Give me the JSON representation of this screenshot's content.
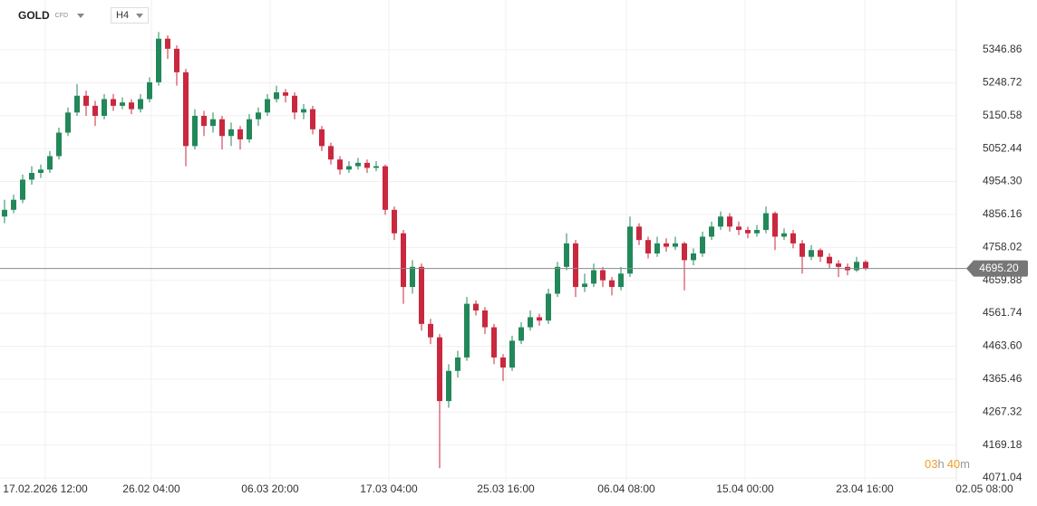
{
  "header": {
    "symbol": "GOLD",
    "instrument": "CFD",
    "timeframe": "H4"
  },
  "countdown": {
    "hours": "03",
    "hours_unit": "h",
    "minutes": "40",
    "minutes_unit": "m"
  },
  "chart_data": {
    "type": "candlestick",
    "up_color": "#22885a",
    "down_color": "#c9283e",
    "grid": true,
    "last_price": {
      "value": 4695.2,
      "label": "4695.20"
    },
    "ylim": [
      4060.2,
      5495.3
    ],
    "yticks": [
      5346.86,
      5248.72,
      5150.58,
      5052.44,
      {
        "value": 4954.3,
        "label": "4954.30"
      },
      4856.16,
      4758.02,
      4659.88,
      4561.74,
      {
        "value": 4463.6,
        "label": "4463.60"
      },
      4365.46,
      4267.32,
      4169.18,
      4071.04
    ],
    "xlim": [
      -0.5,
      113.5
    ],
    "xticks": [
      {
        "value": 4.5,
        "label": "17.02.2026 12:00"
      },
      {
        "value": 16.2,
        "label": "26.02 04:00"
      },
      {
        "value": 29.3,
        "label": "06.03 20:00"
      },
      {
        "value": 42.4,
        "label": "17.03 04:00"
      },
      {
        "value": 55.3,
        "label": "25.03 16:00"
      },
      {
        "value": 68.6,
        "label": "06.04 08:00"
      },
      {
        "value": 81.7,
        "label": "15.04 00:00"
      },
      {
        "value": 94.9,
        "label": "23.04 16:00"
      },
      {
        "value": 108.1,
        "label": "02.05 08:00"
      }
    ],
    "ohlc": [
      [
        4850,
        4900,
        4830,
        4870
      ],
      [
        4870,
        4915,
        4860,
        4900
      ],
      [
        4900,
        4975,
        4890,
        4960
      ],
      [
        4960,
        5000,
        4945,
        4980
      ],
      [
        4980,
        5005,
        4965,
        4990
      ],
      [
        4990,
        5045,
        4980,
        5030
      ],
      [
        5030,
        5115,
        5020,
        5100
      ],
      [
        5100,
        5175,
        5090,
        5160
      ],
      [
        5160,
        5245,
        5150,
        5210
      ],
      [
        5210,
        5225,
        5150,
        5180
      ],
      [
        5180,
        5195,
        5120,
        5150
      ],
      [
        5150,
        5215,
        5140,
        5200
      ],
      [
        5200,
        5215,
        5165,
        5180
      ],
      [
        5180,
        5205,
        5170,
        5190
      ],
      [
        5190,
        5200,
        5155,
        5170
      ],
      [
        5170,
        5215,
        5160,
        5200
      ],
      [
        5200,
        5265,
        5190,
        5250
      ],
      [
        5250,
        5400,
        5240,
        5380
      ],
      [
        5380,
        5390,
        5320,
        5350
      ],
      [
        5350,
        5360,
        5240,
        5280
      ],
      [
        5280,
        5290,
        5000,
        5060
      ],
      [
        5060,
        5170,
        5050,
        5150
      ],
      [
        5150,
        5165,
        5090,
        5120
      ],
      [
        5120,
        5160,
        5100,
        5140
      ],
      [
        5140,
        5150,
        5050,
        5090
      ],
      [
        5090,
        5130,
        5060,
        5110
      ],
      [
        5110,
        5120,
        5050,
        5080
      ],
      [
        5080,
        5155,
        5070,
        5140
      ],
      [
        5140,
        5175,
        5120,
        5160
      ],
      [
        5160,
        5215,
        5150,
        5200
      ],
      [
        5200,
        5240,
        5190,
        5220
      ],
      [
        5220,
        5230,
        5190,
        5210
      ],
      [
        5210,
        5220,
        5140,
        5160
      ],
      [
        5160,
        5185,
        5140,
        5170
      ],
      [
        5170,
        5180,
        5095,
        5110
      ],
      [
        5110,
        5120,
        5045,
        5060
      ],
      [
        5060,
        5070,
        5005,
        5020
      ],
      [
        5020,
        5030,
        4975,
        4990
      ],
      [
        4990,
        5015,
        4980,
        5000
      ],
      [
        5000,
        5025,
        4990,
        5010
      ],
      [
        5010,
        5020,
        4980,
        4995
      ],
      [
        4995,
        5015,
        4985,
        5000
      ],
      [
        5000,
        5005,
        4855,
        4870
      ],
      [
        4870,
        4880,
        4780,
        4800
      ],
      [
        4800,
        4810,
        4590,
        4640
      ],
      [
        4640,
        4720,
        4620,
        4700
      ],
      [
        4700,
        4710,
        4510,
        4530
      ],
      [
        4530,
        4545,
        4470,
        4490
      ],
      [
        4490,
        4500,
        4100,
        4300
      ],
      [
        4300,
        4410,
        4280,
        4390
      ],
      [
        4390,
        4450,
        4370,
        4430
      ],
      [
        4430,
        4610,
        4420,
        4590
      ],
      [
        4590,
        4600,
        4555,
        4570
      ],
      [
        4570,
        4580,
        4500,
        4520
      ],
      [
        4520,
        4530,
        4410,
        4430
      ],
      [
        4430,
        4440,
        4360,
        4400
      ],
      [
        4400,
        4495,
        4390,
        4480
      ],
      [
        4480,
        4535,
        4470,
        4520
      ],
      [
        4520,
        4570,
        4510,
        4550
      ],
      [
        4550,
        4560,
        4525,
        4540
      ],
      [
        4540,
        4635,
        4530,
        4620
      ],
      [
        4620,
        4715,
        4610,
        4700
      ],
      [
        4700,
        4800,
        4690,
        4770
      ],
      [
        4770,
        4780,
        4610,
        4640
      ],
      [
        4640,
        4680,
        4625,
        4650
      ],
      [
        4650,
        4710,
        4640,
        4690
      ],
      [
        4690,
        4700,
        4640,
        4660
      ],
      [
        4660,
        4670,
        4615,
        4640
      ],
      [
        4640,
        4700,
        4630,
        4680
      ],
      [
        4680,
        4850,
        4670,
        4820
      ],
      [
        4820,
        4830,
        4765,
        4780
      ],
      [
        4780,
        4790,
        4725,
        4740
      ],
      [
        4740,
        4790,
        4730,
        4770
      ],
      [
        4770,
        4785,
        4745,
        4760
      ],
      [
        4760,
        4790,
        4750,
        4770
      ],
      [
        4770,
        4775,
        4630,
        4720
      ],
      [
        4720,
        4755,
        4705,
        4740
      ],
      [
        4740,
        4805,
        4730,
        4790
      ],
      [
        4790,
        4835,
        4780,
        4820
      ],
      [
        4820,
        4865,
        4810,
        4850
      ],
      [
        4850,
        4860,
        4805,
        4820
      ],
      [
        4820,
        4835,
        4795,
        4810
      ],
      [
        4810,
        4820,
        4785,
        4800
      ],
      [
        4800,
        4825,
        4790,
        4810
      ],
      [
        4810,
        4880,
        4800,
        4860
      ],
      [
        4860,
        4865,
        4750,
        4790
      ],
      [
        4790,
        4815,
        4780,
        4800
      ],
      [
        4800,
        4810,
        4755,
        4770
      ],
      [
        4770,
        4780,
        4680,
        4730
      ],
      [
        4730,
        4765,
        4720,
        4750
      ],
      [
        4750,
        4755,
        4715,
        4730
      ],
      [
        4730,
        4740,
        4695,
        4710
      ],
      [
        4710,
        4720,
        4670,
        4700
      ],
      [
        4700,
        4710,
        4675,
        4690
      ],
      [
        4690,
        4730,
        4685,
        4715
      ],
      [
        4715,
        4720,
        4690,
        4695.2
      ]
    ]
  }
}
